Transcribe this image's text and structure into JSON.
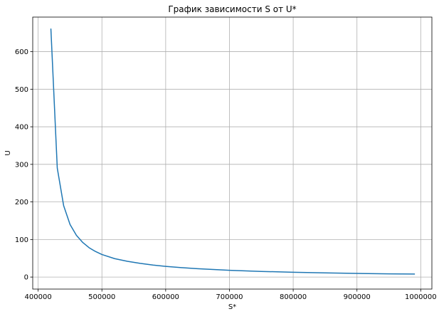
{
  "chart_data": {
    "type": "line",
    "title": "График зависимости S от U*",
    "xlabel": "S*",
    "ylabel": "U",
    "xlim": [
      391500,
      1017500
    ],
    "ylim": [
      -32,
      692
    ],
    "grid": true,
    "xticks": [
      400000,
      500000,
      600000,
      700000,
      800000,
      900000,
      1000000
    ],
    "xtick_labels": [
      "400000",
      "500000",
      "600000",
      "700000",
      "800000",
      "900000",
      "1000000"
    ],
    "yticks": [
      0,
      100,
      200,
      300,
      400,
      500,
      600
    ],
    "ytick_labels": [
      "0",
      "100",
      "200",
      "300",
      "400",
      "500",
      "600"
    ],
    "series": [
      {
        "color": "#1f77b4",
        "x": [
          420000,
          430000,
          440000,
          450000,
          460000,
          470000,
          480000,
          490000,
          500000,
          520000,
          540000,
          560000,
          580000,
          600000,
          625000,
          650000,
          675000,
          700000,
          750000,
          800000,
          850000,
          900000,
          950000,
          990000
        ],
        "y": [
          660,
          290,
          190,
          140,
          111,
          92,
          78,
          68,
          60,
          49,
          42,
          36.5,
          32,
          28.5,
          25,
          22.3,
          20,
          18,
          15,
          12.8,
          11,
          9.7,
          8.6,
          8
        ]
      }
    ]
  }
}
